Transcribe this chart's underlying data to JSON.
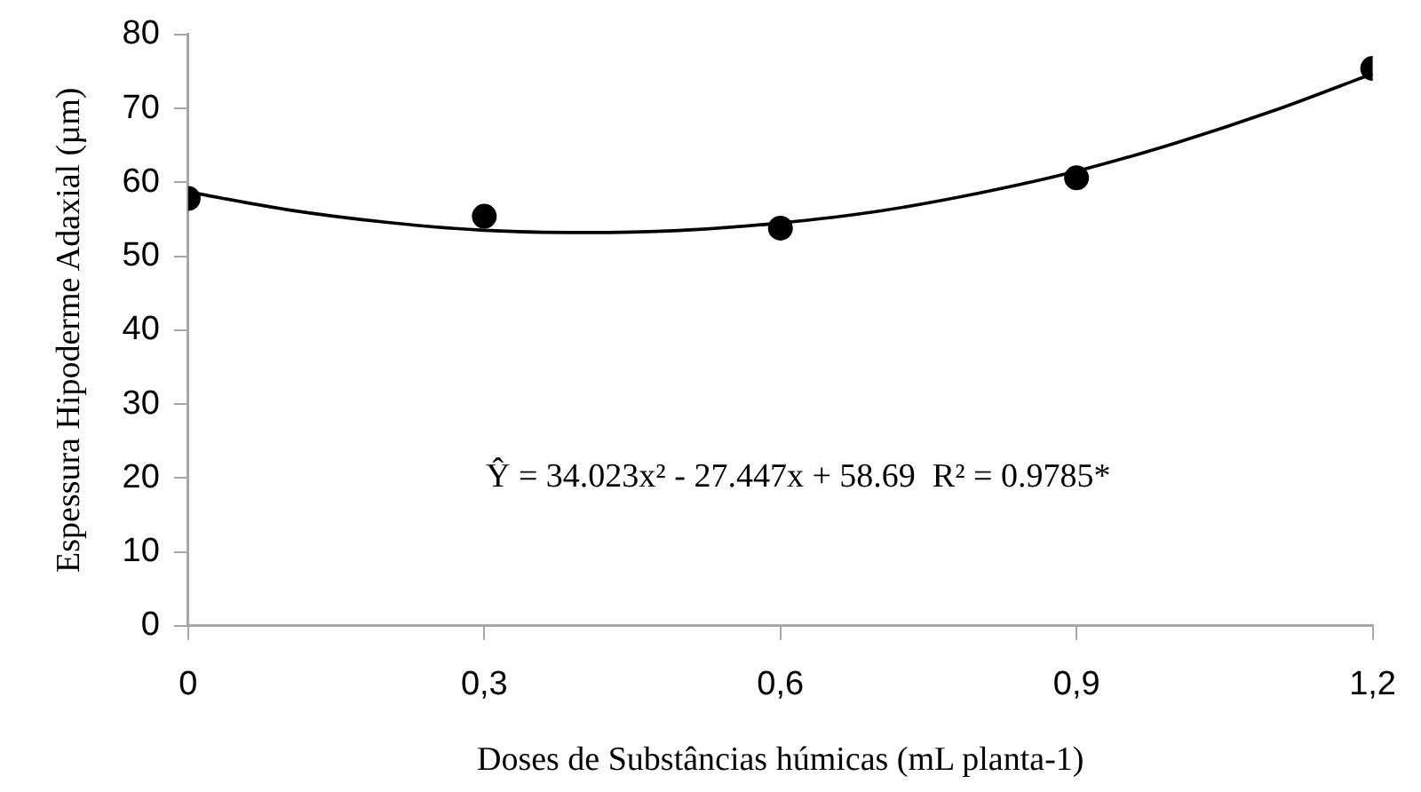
{
  "chart_data": {
    "type": "scatter",
    "xlabel": "Doses de Substâncias húmicas (mL planta-1)",
    "ylabel": "Espessura Hipoderme Adaxial (µm)",
    "series": [
      {
        "color": "#000000",
        "marker": "circle",
        "x": [
          0,
          0.3,
          0.6,
          0.9,
          1.2
        ],
        "values": [
          57.8,
          55.4,
          53.8,
          60.6,
          75.4
        ]
      },
      {
        "type": "line",
        "color": "#000000",
        "marker": "none",
        "x": [
          0,
          0.1,
          0.2,
          0.3,
          0.4,
          0.5,
          0.6,
          0.7,
          0.8,
          0.9,
          1.0,
          1.1,
          1.2
        ],
        "values": [
          58.7,
          56.3,
          54.6,
          53.5,
          53.2,
          53.5,
          54.5,
          56.1,
          58.5,
          61.5,
          65.3,
          69.7,
          74.7
        ]
      }
    ],
    "xlim": [
      0,
      1.2
    ],
    "xticks": [
      0,
      {
        "value": 0.3,
        "label": "0,3"
      },
      {
        "value": 0.6,
        "label": "0,6"
      },
      {
        "value": 0.9,
        "label": "0,9"
      },
      {
        "value": 1.2,
        "label": "1,2"
      }
    ],
    "ylim": [
      0,
      80
    ],
    "yticks": [
      0,
      10,
      20,
      30,
      40,
      50,
      60,
      70,
      80
    ],
    "grid": false,
    "legend": false,
    "annotations": [
      "Ŷ = 34.023x² - 27.447x + 58.69  R² = 0.9785*"
    ]
  }
}
